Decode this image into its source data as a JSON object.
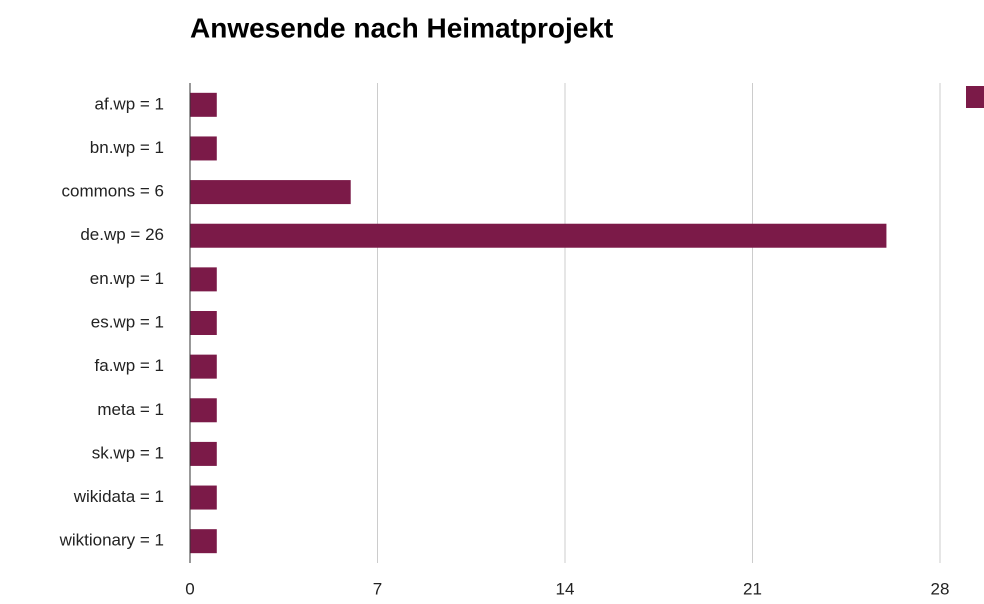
{
  "chart_data": {
    "type": "bar",
    "orientation": "horizontal",
    "title": "Anwesende nach Heimatprojekt",
    "categories": [
      "af.wp = 1",
      "bn.wp = 1",
      "commons = 6",
      "de.wp = 26",
      "en.wp = 1",
      "es.wp = 1",
      "fa.wp = 1",
      "meta = 1",
      "sk.wp = 1",
      "wikidata = 1",
      "wiktionary = 1"
    ],
    "values": [
      1,
      1,
      6,
      26,
      1,
      1,
      1,
      1,
      1,
      1,
      1
    ],
    "color": "#7b1a48",
    "xlim": [
      0,
      28
    ],
    "xticks": [
      0,
      7,
      14,
      21,
      28
    ],
    "grid": true,
    "legend": "top-right"
  }
}
